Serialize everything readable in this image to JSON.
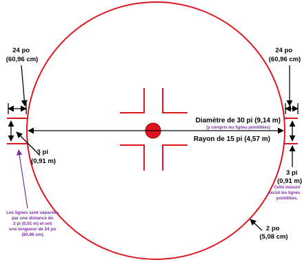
{
  "colors": {
    "field_lines": "#e0141e",
    "dimension_lines": "#000000",
    "note_text": "#7a2fa0"
  },
  "labels": {
    "top_left_dimension": {
      "line1": "24 po",
      "line2": "(60,96 cm)"
    },
    "top_right_dimension": {
      "line1": "24 po",
      "line2": "(60,96 cm)"
    },
    "left_gap": {
      "line1": "3 pi",
      "line2": "(0,91 m)"
    },
    "right_gap": {
      "line1": "3 pi",
      "line2": "(0,91 m)"
    },
    "diameter": "Diamètre de 30 pi (9,14 m)",
    "diameter_note": "(y compris les lignes pointillées)",
    "radius": "Rayon de 15 pi (4,57 m)",
    "right_note": {
      "line1": "Cette mesure",
      "line2": "exclut les lignes",
      "line3": "pointillées."
    },
    "line_width": {
      "line1": "2 po",
      "line2": "(5,08 cm)"
    },
    "left_note": {
      "line1": "Les lignes sont séparées",
      "line2": "par une distance de",
      "line3": "3 pi (0,91 m) et ont",
      "line4": "une longueur de 24 po",
      "line5": "(60,96 cm)."
    }
  }
}
